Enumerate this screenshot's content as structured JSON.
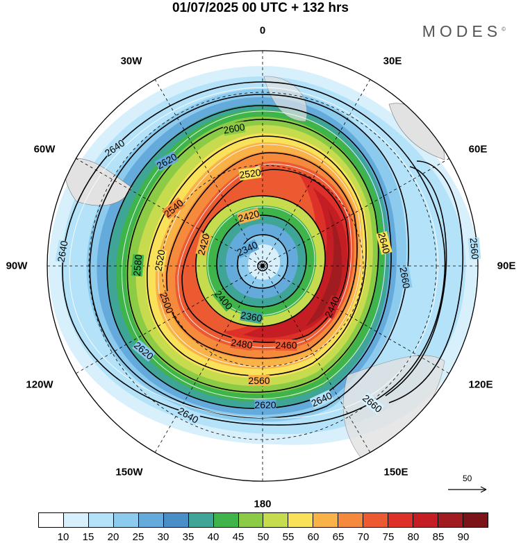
{
  "header": {
    "title": "01/07/2025  00 UTC  + 132 hrs",
    "brand": "MODES"
  },
  "longitude_labels": {
    "lon_0": "0",
    "lon_30e": "30E",
    "lon_60e": "60E",
    "lon_90e": "90E",
    "lon_120e": "120E",
    "lon_150e": "150E",
    "lon_180": "180",
    "lon_150w": "150W",
    "lon_120w": "120W",
    "lon_90w": "90W",
    "lon_60w": "60W",
    "lon_30w": "30W"
  },
  "contour_labels": [
    "2640",
    "2620",
    "2600",
    "2580",
    "2560",
    "2540",
    "2520",
    "2500",
    "2480",
    "2460",
    "2440",
    "2420",
    "2400",
    "2360",
    "2340",
    "2660"
  ],
  "wind_reference": {
    "value": "50"
  },
  "colorbar": {
    "ticks": [
      "10",
      "15",
      "20",
      "25",
      "30",
      "35",
      "40",
      "45",
      "50",
      "55",
      "60",
      "65",
      "70",
      "75",
      "80",
      "85",
      "90"
    ],
    "colors": [
      "#ffffff",
      "#d8f0fc",
      "#b4e2f8",
      "#8ccbee",
      "#64abdc",
      "#4a8ec8",
      "#3fa596",
      "#3fb44a",
      "#8ccb46",
      "#c6dc4e",
      "#fae15a",
      "#f8b248",
      "#f58a3c",
      "#ec5a32",
      "#dc3028",
      "#c41e24",
      "#a01c20",
      "#7a1418"
    ]
  }
}
